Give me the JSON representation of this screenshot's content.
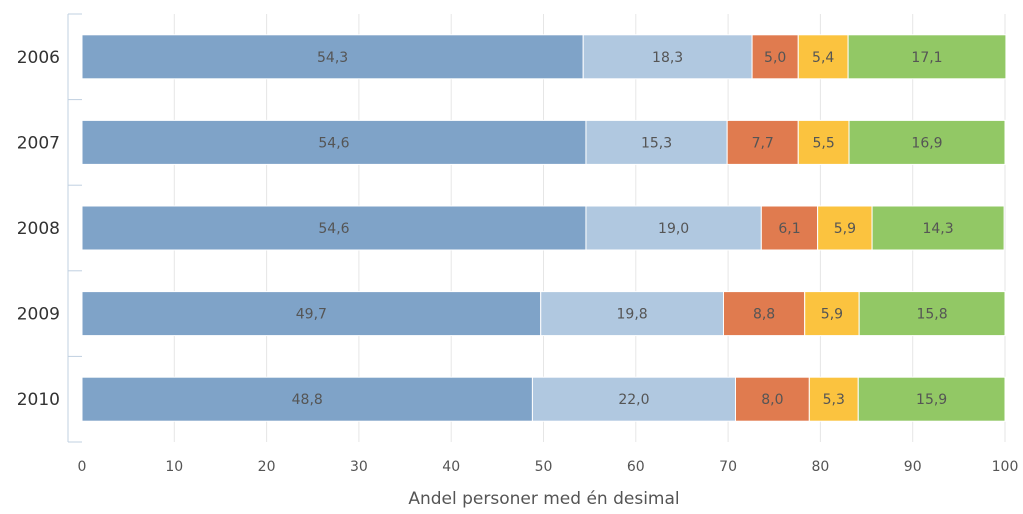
{
  "chart_data": {
    "type": "bar",
    "orientation": "horizontal",
    "stacked": true,
    "categories": [
      "2006",
      "2007",
      "2008",
      "2009",
      "2010"
    ],
    "series": [
      {
        "color": "#7fa3c8",
        "values": [
          54.3,
          54.6,
          54.6,
          49.7,
          48.8
        ],
        "labels": [
          "54,3",
          "54,6",
          "54,6",
          "49,7",
          "48,8"
        ]
      },
      {
        "color": "#b0c8e0",
        "values": [
          18.3,
          15.3,
          19.0,
          19.8,
          22.0
        ],
        "labels": [
          "18,3",
          "15,3",
          "19,0",
          "19,8",
          "22,0"
        ]
      },
      {
        "color": "#e07b4f",
        "values": [
          5.0,
          7.7,
          6.1,
          8.8,
          8.0
        ],
        "labels": [
          "5,0",
          "7,7",
          "6,1",
          "8,8",
          "8,0"
        ]
      },
      {
        "color": "#fbc33f",
        "values": [
          5.4,
          5.5,
          5.9,
          5.9,
          5.3
        ],
        "labels": [
          "5,4",
          "5,5",
          "5,9",
          "5,9",
          "5,3"
        ]
      },
      {
        "color": "#92c865",
        "values": [
          17.1,
          16.9,
          14.3,
          15.8,
          15.9
        ],
        "labels": [
          "17,1",
          "16,9",
          "14,3",
          "15,8",
          "15,9"
        ]
      }
    ],
    "xlabel": "Andel personer med én desimal",
    "ylabel": "",
    "xlim": [
      0,
      100
    ],
    "xticks": [
      0,
      10,
      20,
      30,
      40,
      50,
      60,
      70,
      80,
      90,
      100
    ],
    "grid": true,
    "legend": "none"
  }
}
